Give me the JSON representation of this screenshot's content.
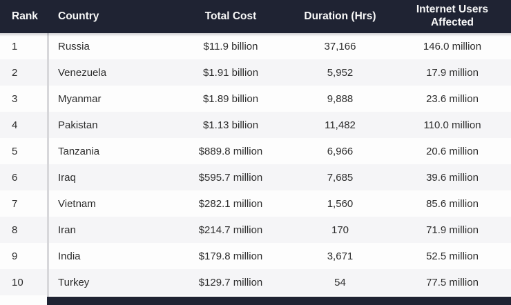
{
  "colors": {
    "header_bg": "#1f2333",
    "header_text": "#f8f8f8",
    "row_bg": "#fdfdfd",
    "row_alt_bg": "#f5f5f7",
    "body_text": "#2d2d2d",
    "divider": "#d7d7da",
    "footer_bar": "#1f2333"
  },
  "table": {
    "columns": [
      {
        "label": "Rank",
        "align": "left"
      },
      {
        "label": "Country",
        "align": "left"
      },
      {
        "label": "Total Cost",
        "align": "center"
      },
      {
        "label": "Duration (Hrs)",
        "align": "center"
      },
      {
        "label": "Internet Users Affected",
        "align": "center"
      }
    ],
    "rows": [
      {
        "rank": "1",
        "country": "Russia",
        "total_cost": "$11.9 billion",
        "duration_hrs": "37,166",
        "users_affected": "146.0 million"
      },
      {
        "rank": "2",
        "country": "Venezuela",
        "total_cost": "$1.91 billion",
        "duration_hrs": "5,952",
        "users_affected": "17.9 million"
      },
      {
        "rank": "3",
        "country": "Myanmar",
        "total_cost": "$1.89 billion",
        "duration_hrs": "9,888",
        "users_affected": "23.6 million"
      },
      {
        "rank": "4",
        "country": "Pakistan",
        "total_cost": "$1.13 billion",
        "duration_hrs": "11,482",
        "users_affected": "110.0 million"
      },
      {
        "rank": "5",
        "country": "Tanzania",
        "total_cost": "$889.8 million",
        "duration_hrs": "6,966",
        "users_affected": "20.6 million"
      },
      {
        "rank": "6",
        "country": "Iraq",
        "total_cost": "$595.7 million",
        "duration_hrs": "7,685",
        "users_affected": "39.6 million"
      },
      {
        "rank": "7",
        "country": "Vietnam",
        "total_cost": "$282.1 million",
        "duration_hrs": "1,560",
        "users_affected": "85.6 million"
      },
      {
        "rank": "8",
        "country": "Iran",
        "total_cost": "$214.7 million",
        "duration_hrs": "170",
        "users_affected": "71.9 million"
      },
      {
        "rank": "9",
        "country": "India",
        "total_cost": "$179.8 million",
        "duration_hrs": "3,671",
        "users_affected": "52.5 million"
      },
      {
        "rank": "10",
        "country": "Turkey",
        "total_cost": "$129.7 million",
        "duration_hrs": "54",
        "users_affected": "77.5 million"
      }
    ]
  },
  "chart_data": {
    "type": "table",
    "title": "",
    "columns": [
      "Rank",
      "Country",
      "Total Cost",
      "Duration (Hrs)",
      "Internet Users Affected"
    ],
    "rows": [
      [
        "1",
        "Russia",
        "$11.9 billion",
        "37,166",
        "146.0 million"
      ],
      [
        "2",
        "Venezuela",
        "$1.91 billion",
        "5,952",
        "17.9 million"
      ],
      [
        "3",
        "Myanmar",
        "$1.89 billion",
        "9,888",
        "23.6 million"
      ],
      [
        "4",
        "Pakistan",
        "$1.13 billion",
        "11,482",
        "110.0 million"
      ],
      [
        "5",
        "Tanzania",
        "$889.8 million",
        "6,966",
        "20.6 million"
      ],
      [
        "6",
        "Iraq",
        "$595.7 million",
        "7,685",
        "39.6 million"
      ],
      [
        "7",
        "Vietnam",
        "$282.1 million",
        "1,560",
        "85.6 million"
      ],
      [
        "8",
        "Iran",
        "$214.7 million",
        "170",
        "71.9 million"
      ],
      [
        "9",
        "India",
        "$179.8 million",
        "3,671",
        "52.5 million"
      ],
      [
        "10",
        "Turkey",
        "$129.7 million",
        "54",
        "77.5 million"
      ]
    ]
  }
}
